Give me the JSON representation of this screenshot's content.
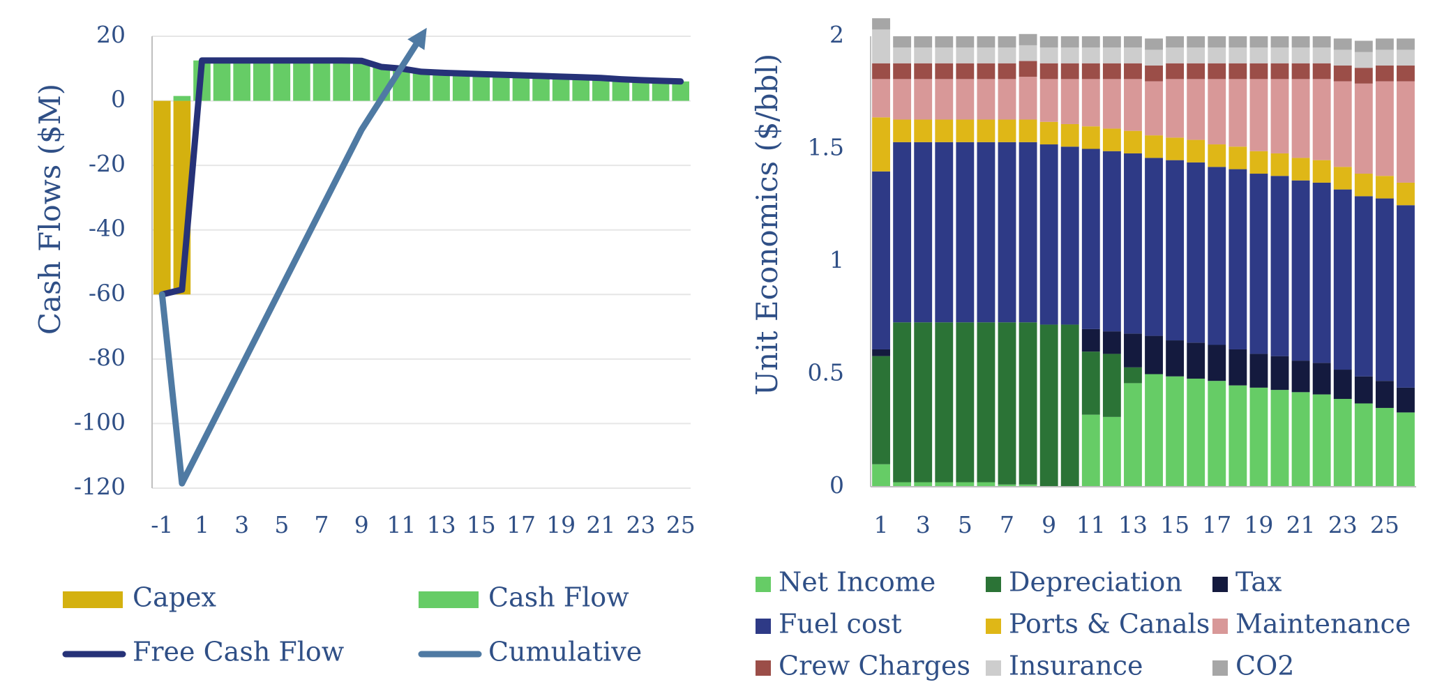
{
  "charts": [
    {
      "id": "cash-flow-chart",
      "chart_data": {
        "type": "bar",
        "title": "",
        "xlabel": "",
        "ylabel": "Cash Flows ($M)",
        "ylim": [
          -120,
          20
        ],
        "yticks": [
          20,
          0,
          -20,
          -40,
          -60,
          -80,
          -100,
          -120
        ],
        "x": [
          -1,
          0,
          1,
          2,
          3,
          4,
          5,
          6,
          7,
          8,
          9,
          10,
          11,
          12,
          13,
          14,
          15,
          16,
          17,
          18,
          19,
          20,
          21,
          22,
          23,
          24,
          25
        ],
        "x_tick_labels": [
          "-1",
          "1",
          "3",
          "5",
          "7",
          "9",
          "11",
          "13",
          "15",
          "17",
          "19",
          "21",
          "23",
          "25"
        ],
        "grid": true,
        "legend_position": "bottom",
        "series": [
          {
            "name": "Capex",
            "kind": "bar",
            "color": "#d4b10f",
            "values": [
              -60,
              -60,
              0,
              0,
              0,
              0,
              0,
              0,
              0,
              0,
              0,
              0,
              0,
              0,
              0,
              0,
              0,
              0,
              0,
              0,
              0,
              0,
              0,
              0,
              0,
              0,
              0
            ]
          },
          {
            "name": "Cash Flow",
            "kind": "bar",
            "color": "#66cc66",
            "values": [
              0,
              1.5,
              12.5,
              12.5,
              12.5,
              12.5,
              12.5,
              12.5,
              12.5,
              12.5,
              12.4,
              10.5,
              10,
              9,
              8.7,
              8.5,
              8.3,
              8.1,
              7.9,
              7.7,
              7.5,
              7.3,
              7.1,
              6.7,
              6.4,
              6.2,
              6
            ]
          },
          {
            "name": "Free Cash Flow",
            "kind": "line",
            "color": "#263278",
            "values": [
              -60,
              -58.5,
              12.5,
              12.5,
              12.5,
              12.5,
              12.5,
              12.5,
              12.5,
              12.5,
              12.4,
              10.5,
              10,
              9,
              8.7,
              8.5,
              8.3,
              8.1,
              7.9,
              7.7,
              7.5,
              7.3,
              7.1,
              6.7,
              6.4,
              6.2,
              6
            ]
          },
          {
            "name": "Cumulative",
            "kind": "line",
            "color": "#4f7aa3",
            "arrow": true,
            "points": [
              [
                -1,
                -60
              ],
              [
                0,
                -118.5
              ],
              [
                9,
                -9
              ],
              [
                12,
                20
              ]
            ]
          }
        ]
      }
    },
    {
      "id": "unit-economics-chart",
      "chart_data": {
        "type": "bar",
        "stacked": true,
        "title": "",
        "xlabel": "",
        "ylabel": "Unit Economics ($/bbl)",
        "ylim": [
          0,
          2
        ],
        "yticks": [
          2,
          1.5,
          1,
          0.5,
          0
        ],
        "ytick_labels": [
          "2",
          "1.5",
          "1",
          "0.5",
          "0"
        ],
        "categories": [
          1,
          2,
          3,
          4,
          5,
          6,
          7,
          8,
          9,
          10,
          11,
          12,
          13,
          14,
          15,
          16,
          17,
          18,
          19,
          20,
          21,
          22,
          23,
          24,
          25,
          26
        ],
        "x_tick_labels": [
          "1",
          "3",
          "5",
          "7",
          "9",
          "11",
          "13",
          "15",
          "17",
          "19",
          "21",
          "23",
          "25"
        ],
        "grid": false,
        "legend_position": "bottom",
        "series": [
          {
            "name": "Net Income",
            "color": "#66cc66",
            "values": [
              0.1,
              0.02,
              0.02,
              0.02,
              0.02,
              0.02,
              0.01,
              0.01,
              0.0,
              0.0,
              0.32,
              0.31,
              0.46,
              0.5,
              0.49,
              0.48,
              0.47,
              0.45,
              0.44,
              0.43,
              0.42,
              0.41,
              0.39,
              0.37,
              0.35,
              0.33
            ]
          },
          {
            "name": "Depreciation",
            "color": "#2b7336",
            "values": [
              0.48,
              0.71,
              0.71,
              0.71,
              0.71,
              0.71,
              0.72,
              0.72,
              0.72,
              0.72,
              0.28,
              0.28,
              0.07,
              0.0,
              0.0,
              0.0,
              0.0,
              0.0,
              0.0,
              0.0,
              0.0,
              0.0,
              0.0,
              0.0,
              0.0,
              0.0
            ]
          },
          {
            "name": "Tax",
            "color": "#141a3e",
            "values": [
              0.03,
              0.0,
              0.0,
              0.0,
              0.0,
              0.0,
              0.0,
              0.0,
              0.0,
              0.0,
              0.1,
              0.1,
              0.15,
              0.17,
              0.16,
              0.16,
              0.16,
              0.16,
              0.15,
              0.15,
              0.14,
              0.14,
              0.13,
              0.12,
              0.12,
              0.11
            ]
          },
          {
            "name": "Fuel cost",
            "color": "#2e3a86",
            "values": [
              0.79,
              0.8,
              0.8,
              0.8,
              0.8,
              0.8,
              0.8,
              0.8,
              0.8,
              0.79,
              0.8,
              0.8,
              0.8,
              0.79,
              0.8,
              0.8,
              0.79,
              0.8,
              0.8,
              0.8,
              0.8,
              0.8,
              0.8,
              0.8,
              0.81,
              0.81
            ]
          },
          {
            "name": "Ports & Canals",
            "color": "#dfb717",
            "values": [
              0.24,
              0.1,
              0.1,
              0.1,
              0.1,
              0.1,
              0.1,
              0.1,
              0.1,
              0.1,
              0.1,
              0.1,
              0.1,
              0.1,
              0.1,
              0.1,
              0.1,
              0.1,
              0.1,
              0.1,
              0.1,
              0.1,
              0.1,
              0.1,
              0.1,
              0.1
            ]
          },
          {
            "name": "Maintenance",
            "color": "#d89898",
            "values": [
              0.17,
              0.18,
              0.18,
              0.18,
              0.18,
              0.18,
              0.18,
              0.19,
              0.19,
              0.2,
              0.21,
              0.22,
              0.23,
              0.24,
              0.26,
              0.27,
              0.29,
              0.3,
              0.32,
              0.33,
              0.35,
              0.36,
              0.38,
              0.4,
              0.42,
              0.45
            ]
          },
          {
            "name": "Crew Charges",
            "color": "#9b4e48",
            "values": [
              0.07,
              0.07,
              0.07,
              0.07,
              0.07,
              0.07,
              0.07,
              0.07,
              0.07,
              0.07,
              0.07,
              0.07,
              0.07,
              0.07,
              0.07,
              0.07,
              0.07,
              0.07,
              0.07,
              0.07,
              0.07,
              0.07,
              0.07,
              0.07,
              0.07,
              0.07
            ]
          },
          {
            "name": "Insurance",
            "color": "#cdcdcd",
            "values": [
              0.15,
              0.07,
              0.07,
              0.07,
              0.07,
              0.07,
              0.07,
              0.07,
              0.07,
              0.07,
              0.07,
              0.07,
              0.07,
              0.07,
              0.07,
              0.07,
              0.07,
              0.07,
              0.07,
              0.07,
              0.07,
              0.07,
              0.07,
              0.07,
              0.07,
              0.07
            ]
          },
          {
            "name": "CO2",
            "color": "#a6a6a6",
            "values": [
              0.05,
              0.05,
              0.05,
              0.05,
              0.05,
              0.05,
              0.05,
              0.05,
              0.05,
              0.05,
              0.05,
              0.05,
              0.05,
              0.05,
              0.05,
              0.05,
              0.05,
              0.05,
              0.05,
              0.05,
              0.05,
              0.05,
              0.05,
              0.05,
              0.05,
              0.05
            ]
          }
        ]
      }
    }
  ]
}
